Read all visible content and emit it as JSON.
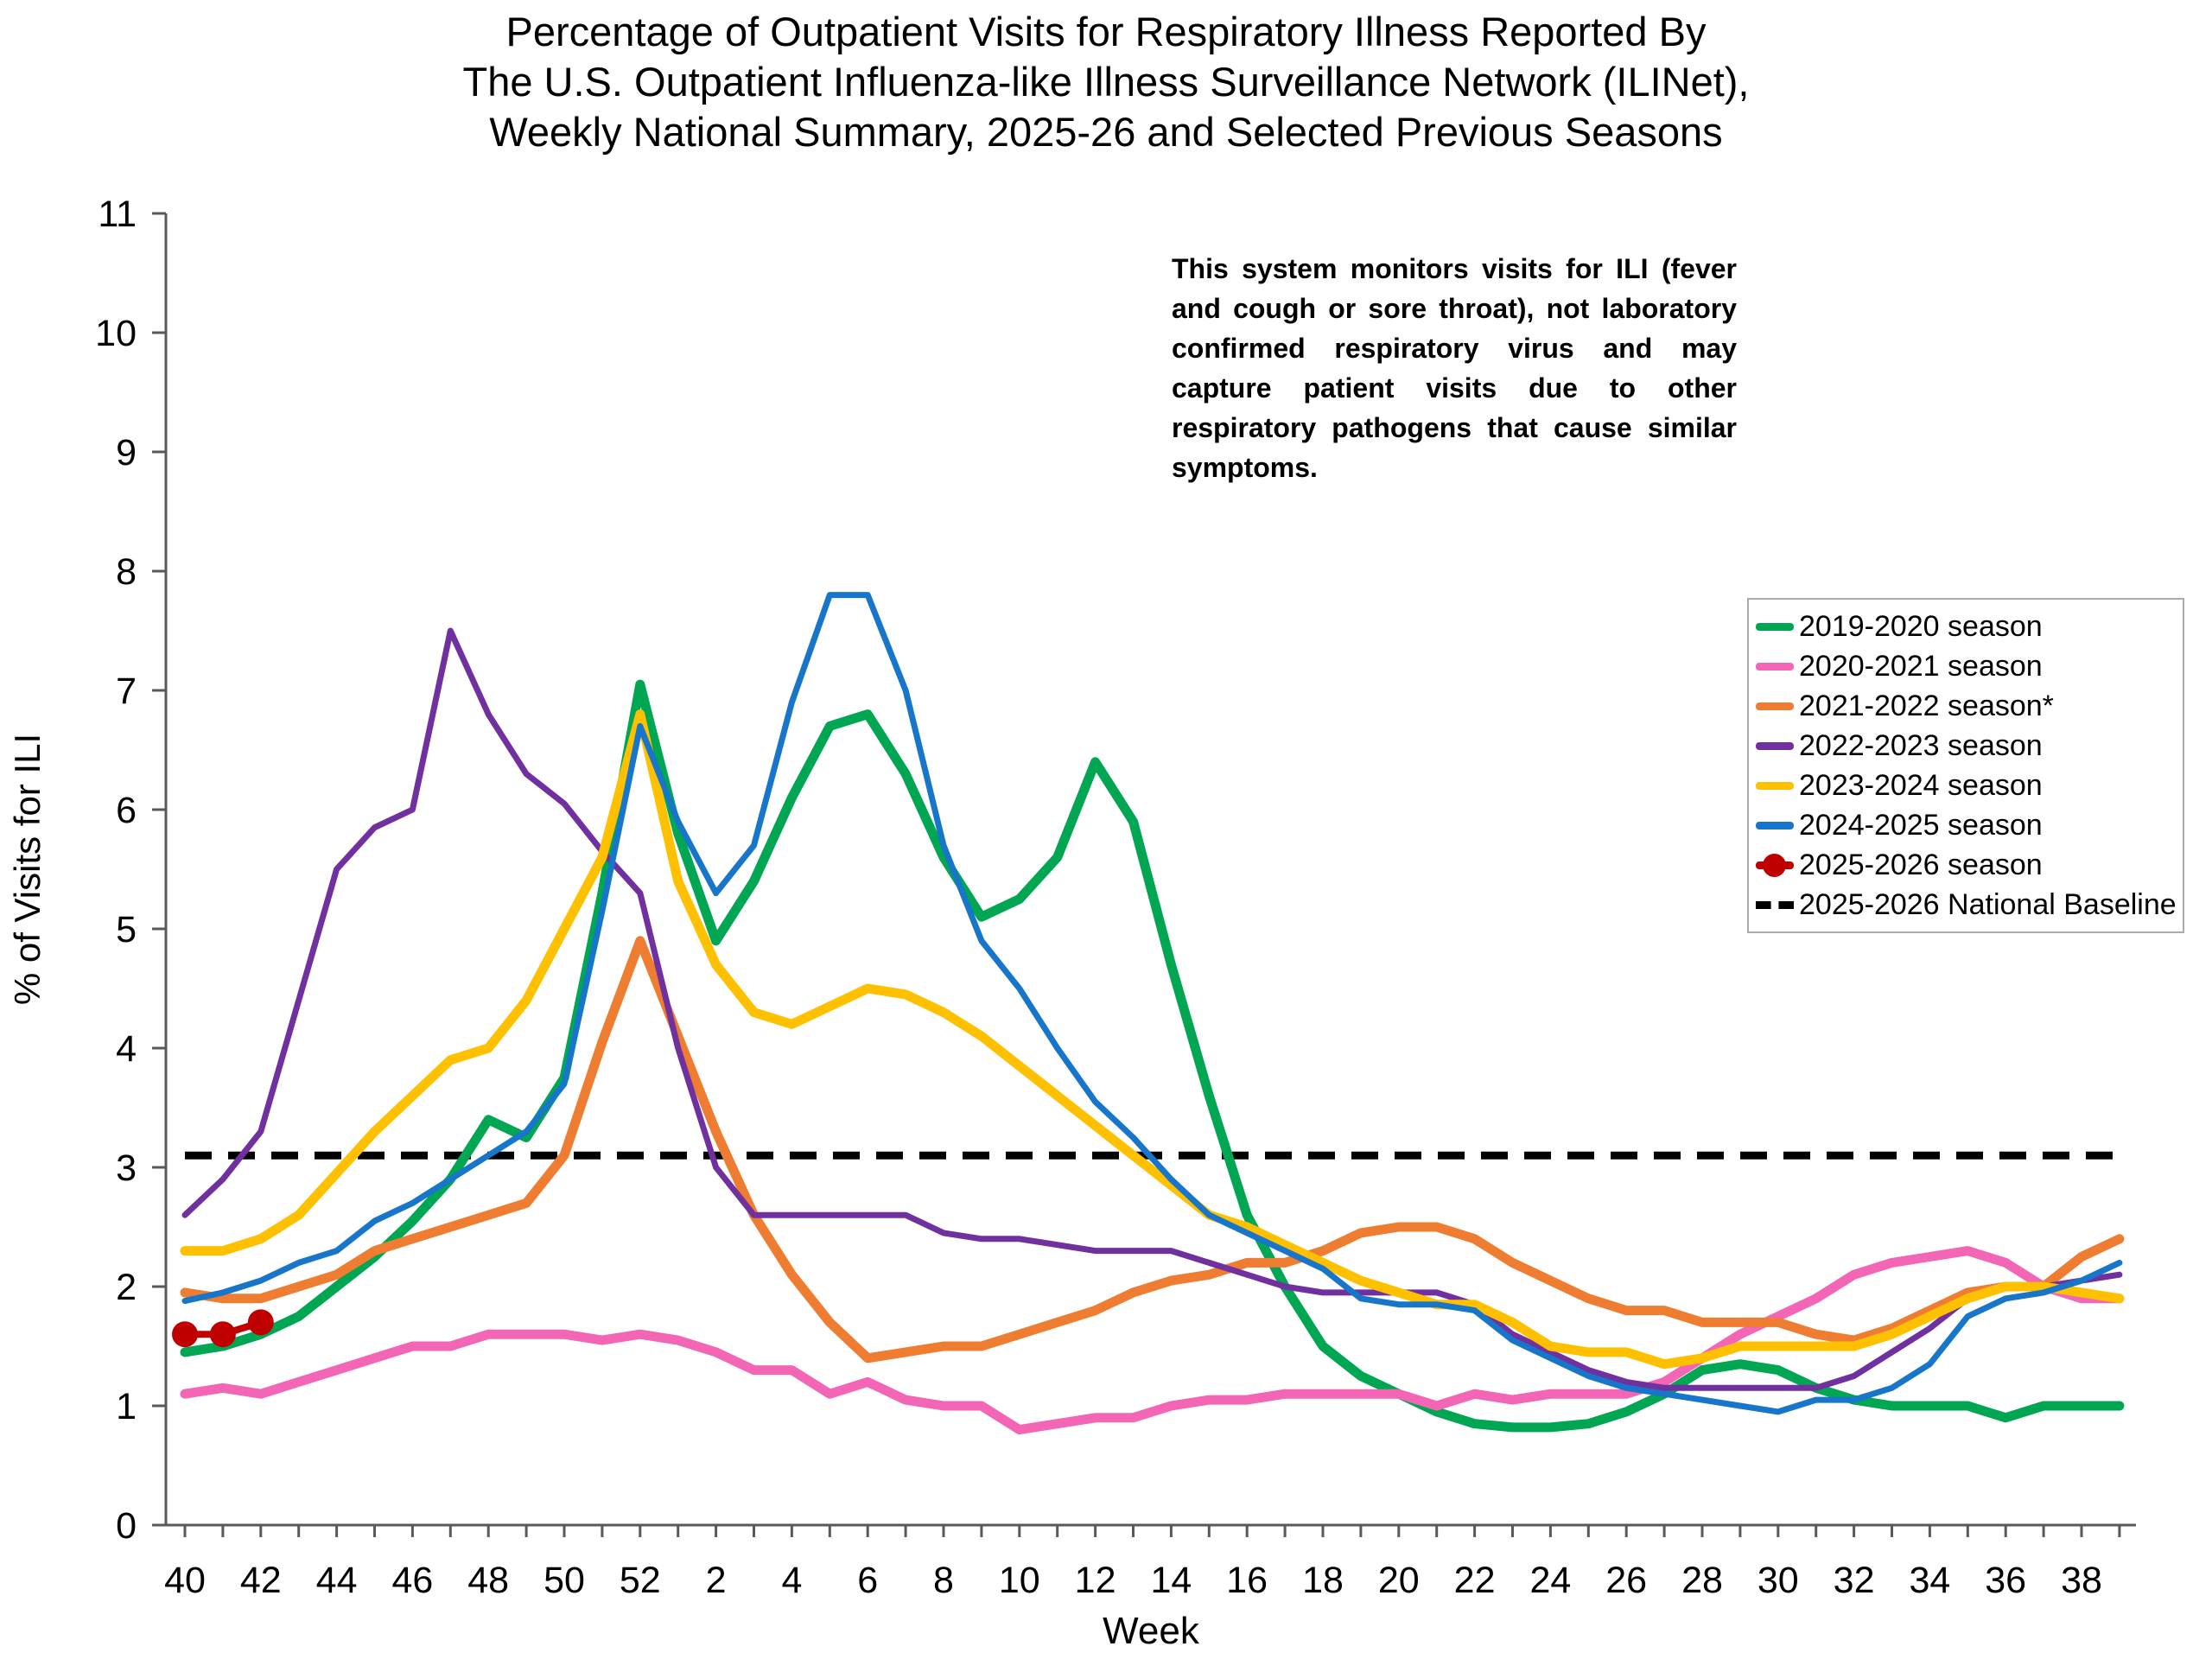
{
  "title": {
    "line1": "Percentage of Outpatient Visits for Respiratory Illness Reported By",
    "line2": "The U.S. Outpatient Influenza-like Illness Surveillance Network (ILINet),",
    "line3": "Weekly National Summary, 2025-26 and Selected Previous Seasons"
  },
  "annotation": {
    "text": "This system monitors visits for ILI (fever and cough or sore throat), not laboratory confirmed respiratory virus and may capture patient visits due to other respiratory pathogens that cause similar symptoms."
  },
  "legend": [
    {
      "label": "2019-2020 season",
      "color": "#00A651",
      "type": "line"
    },
    {
      "label": "2020-2021 season",
      "color": "#F365B5",
      "type": "line"
    },
    {
      "label": "2021-2022 season*",
      "color": "#EE7D31",
      "type": "line"
    },
    {
      "label": "2022-2023 season",
      "color": "#7030A0",
      "type": "line"
    },
    {
      "label": "2023-2024 season",
      "color": "#FFC000",
      "type": "line"
    },
    {
      "label": "2024-2025 season",
      "color": "#1776C9",
      "type": "line"
    },
    {
      "label": "2025-2026 season",
      "color": "#C00000",
      "type": "line-dot"
    },
    {
      "label": "2025-2026 National Baseline",
      "color": "#000000",
      "type": "dashed"
    }
  ],
  "chart_data": {
    "type": "line",
    "title": "Percentage of Outpatient Visits for Respiratory Illness Reported By The U.S. Outpatient Influenza-like Illness Surveillance Network (ILINet), Weekly National Summary, 2025-26 and Selected Previous Seasons",
    "xlabel": "Week",
    "ylabel": "% of Visits for ILI",
    "ylim": [
      0,
      11
    ],
    "y_ticks": [
      0,
      1,
      2,
      3,
      4,
      5,
      6,
      7,
      8,
      9,
      10,
      11
    ],
    "grid": false,
    "legend_position": "right",
    "weeks": [
      "40",
      "41",
      "42",
      "43",
      "44",
      "45",
      "46",
      "47",
      "48",
      "49",
      "50",
      "51",
      "52",
      "1",
      "2",
      "3",
      "4",
      "5",
      "6",
      "7",
      "8",
      "9",
      "10",
      "11",
      "12",
      "13",
      "14",
      "15",
      "16",
      "17",
      "18",
      "19",
      "20",
      "21",
      "22",
      "23",
      "24",
      "25",
      "26",
      "27",
      "28",
      "29",
      "30",
      "31",
      "32",
      "33",
      "34",
      "35",
      "36",
      "37",
      "38",
      "39"
    ],
    "x_tick_labels_shown": [
      "40",
      "42",
      "44",
      "46",
      "48",
      "50",
      "52",
      "2",
      "4",
      "6",
      "8",
      "10",
      "12",
      "14",
      "16",
      "18",
      "20",
      "22",
      "24",
      "26",
      "28",
      "30",
      "32",
      "34",
      "36",
      "38"
    ],
    "baseline": {
      "label": "2025-2026 National Baseline",
      "value": 3.1,
      "color": "#000000"
    },
    "series": [
      {
        "name": "2019-2020 season",
        "color": "#00A651",
        "width": 11,
        "values": [
          1.45,
          1.5,
          1.6,
          1.75,
          2.0,
          2.25,
          2.55,
          2.9,
          3.4,
          3.25,
          3.75,
          5.3,
          7.05,
          5.8,
          4.9,
          5.4,
          6.1,
          6.7,
          6.8,
          6.3,
          5.6,
          5.1,
          5.25,
          5.6,
          6.4,
          5.9,
          4.7,
          3.6,
          2.6,
          2.0,
          1.5,
          1.25,
          1.1,
          0.95,
          0.85,
          0.82,
          0.82,
          0.85,
          0.95,
          1.1,
          1.3,
          1.35,
          1.3,
          1.15,
          1.05,
          1.0,
          1.0,
          1.0,
          0.9,
          1.0,
          1.0,
          1.0
        ]
      },
      {
        "name": "2020-2021 season",
        "color": "#F365B5",
        "width": 11,
        "values": [
          1.1,
          1.15,
          1.1,
          1.2,
          1.3,
          1.4,
          1.5,
          1.5,
          1.6,
          1.6,
          1.6,
          1.55,
          1.6,
          1.55,
          1.45,
          1.3,
          1.3,
          1.1,
          1.2,
          1.05,
          1.0,
          1.0,
          0.8,
          0.85,
          0.9,
          0.9,
          1.0,
          1.05,
          1.05,
          1.1,
          1.1,
          1.1,
          1.1,
          1.0,
          1.1,
          1.05,
          1.1,
          1.1,
          1.1,
          1.2,
          1.4,
          1.6,
          1.75,
          1.9,
          2.1,
          2.2,
          2.25,
          2.3,
          2.2,
          2.0,
          1.9,
          1.9
        ]
      },
      {
        "name": "2021-2022 season*",
        "color": "#EE7D31",
        "width": 11,
        "values": [
          1.95,
          1.9,
          1.9,
          2.0,
          2.1,
          2.3,
          2.4,
          2.5,
          2.6,
          2.7,
          3.1,
          4.05,
          4.9,
          4.1,
          3.3,
          2.6,
          2.1,
          1.7,
          1.4,
          1.45,
          1.5,
          1.5,
          1.6,
          1.7,
          1.8,
          1.95,
          2.05,
          2.1,
          2.2,
          2.2,
          2.3,
          2.45,
          2.5,
          2.5,
          2.4,
          2.2,
          2.05,
          1.9,
          1.8,
          1.8,
          1.7,
          1.7,
          1.7,
          1.6,
          1.55,
          1.65,
          1.8,
          1.95,
          2.0,
          2.0,
          2.25,
          2.4
        ]
      },
      {
        "name": "2022-2023 season",
        "color": "#7030A0",
        "width": 7,
        "values": [
          2.6,
          2.9,
          3.3,
          4.4,
          5.5,
          5.85,
          6.0,
          7.5,
          6.8,
          6.3,
          6.05,
          5.65,
          5.3,
          4.0,
          3.0,
          2.6,
          2.6,
          2.6,
          2.6,
          2.6,
          2.45,
          2.4,
          2.4,
          2.35,
          2.3,
          2.3,
          2.3,
          2.2,
          2.1,
          2.0,
          1.95,
          1.95,
          1.95,
          1.95,
          1.85,
          1.6,
          1.45,
          1.3,
          1.2,
          1.15,
          1.15,
          1.15,
          1.15,
          1.15,
          1.25,
          1.45,
          1.65,
          1.9,
          2.0,
          2.0,
          2.05,
          2.1
        ]
      },
      {
        "name": "2023-2024 season",
        "color": "#FFC000",
        "width": 11,
        "values": [
          2.3,
          2.3,
          2.4,
          2.6,
          2.95,
          3.3,
          3.6,
          3.9,
          4.0,
          4.4,
          5.0,
          5.6,
          6.8,
          5.4,
          4.7,
          4.3,
          4.2,
          4.35,
          4.5,
          4.45,
          4.3,
          4.1,
          3.85,
          3.6,
          3.35,
          3.1,
          2.85,
          2.6,
          2.5,
          2.35,
          2.2,
          2.05,
          1.95,
          1.85,
          1.85,
          1.7,
          1.5,
          1.45,
          1.45,
          1.35,
          1.4,
          1.5,
          1.5,
          1.5,
          1.5,
          1.6,
          1.75,
          1.9,
          2.0,
          2.0,
          1.95,
          1.9
        ]
      },
      {
        "name": "2024-2025 season",
        "color": "#1776C9",
        "width": 7,
        "values": [
          1.88,
          1.95,
          2.05,
          2.2,
          2.3,
          2.55,
          2.7,
          2.9,
          3.1,
          3.3,
          3.7,
          5.15,
          6.7,
          5.9,
          5.3,
          5.7,
          6.9,
          7.8,
          7.8,
          7.0,
          5.7,
          4.9,
          4.5,
          4.0,
          3.55,
          3.25,
          2.9,
          2.6,
          2.45,
          2.3,
          2.15,
          1.9,
          1.85,
          1.85,
          1.8,
          1.55,
          1.4,
          1.25,
          1.15,
          1.1,
          1.05,
          1.0,
          0.95,
          1.05,
          1.05,
          1.15,
          1.35,
          1.75,
          1.9,
          1.95,
          2.05,
          2.2
        ]
      },
      {
        "name": "2025-2026 season",
        "color": "#C00000",
        "width": 8,
        "marker": "dot",
        "marker_radius": 15,
        "values": [
          1.6,
          1.6,
          1.7
        ]
      }
    ]
  }
}
